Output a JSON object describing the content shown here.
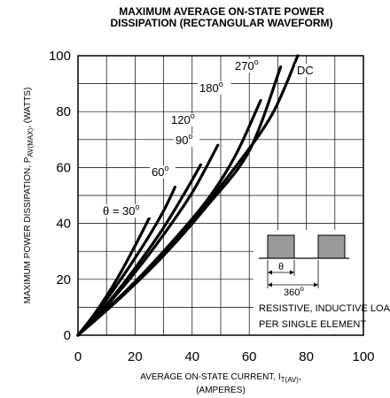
{
  "chart_data": {
    "type": "line",
    "title": "MAXIMUM AVERAGE ON-STATE POWER",
    "subtitle": "DISSIPATION (RECTANGULAR WAVEFORM)",
    "ylabel": {
      "main": "MAXIMUM POWER DISSIPATION, P",
      "sub": "AV(MAX)",
      "tail": ", (WATTS)"
    },
    "xlabel": {
      "line1_main": "AVERAGE ON-STATE  CURRENT, I",
      "line1_sub": "T(AV)",
      "line1_tail": ",",
      "line2": "(AMPERES)"
    },
    "xlim": [
      0,
      100
    ],
    "ylim": [
      0,
      100
    ],
    "x_ticks": [
      "0",
      "20",
      "40",
      "60",
      "80",
      "100"
    ],
    "y_ticks": [
      "0",
      "20",
      "40",
      "60",
      "80",
      "100"
    ],
    "grid": true,
    "series": [
      {
        "name": "θ = 30°",
        "x": [
          0,
          5,
          10,
          15,
          20,
          25
        ],
        "y": [
          0,
          6.5,
          14,
          22.5,
          32,
          42
        ]
      },
      {
        "name": "60°",
        "x": [
          0,
          8,
          16,
          24,
          30,
          34
        ],
        "y": [
          0,
          10,
          21.5,
          34,
          44.5,
          53
        ]
      },
      {
        "name": "90°",
        "x": [
          0,
          10,
          20,
          30,
          38,
          43
        ],
        "y": [
          0,
          11,
          24,
          38.5,
          52,
          61
        ]
      },
      {
        "name": "120°",
        "x": [
          0,
          10,
          20,
          30,
          40,
          49
        ],
        "y": [
          0,
          10.5,
          22.5,
          36,
          51,
          68
        ]
      },
      {
        "name": "180°",
        "x": [
          0,
          15,
          30,
          45,
          55,
          64
        ],
        "y": [
          0,
          14,
          30,
          48,
          64,
          84
        ]
      },
      {
        "name": "270°",
        "x": [
          0,
          15,
          30,
          45,
          60,
          71
        ],
        "y": [
          0,
          13.5,
          28.5,
          46,
          66,
          96
        ]
      },
      {
        "name": "DC",
        "x": [
          0,
          20,
          40,
          55,
          68,
          77
        ],
        "y": [
          0,
          19,
          41,
          60,
          79,
          100
        ]
      }
    ],
    "series_labels": [
      "θ = 30",
      "60",
      "90",
      "120",
      "180",
      "270",
      "DC"
    ],
    "degree_sign": "o",
    "inset": {
      "theta_label": "θ",
      "period_label": "360",
      "degree_sign": "o"
    },
    "annotations": [
      "RESISTIVE, INDUCTIVE LOAD",
      "PER SINGLE ELEMENT"
    ]
  }
}
